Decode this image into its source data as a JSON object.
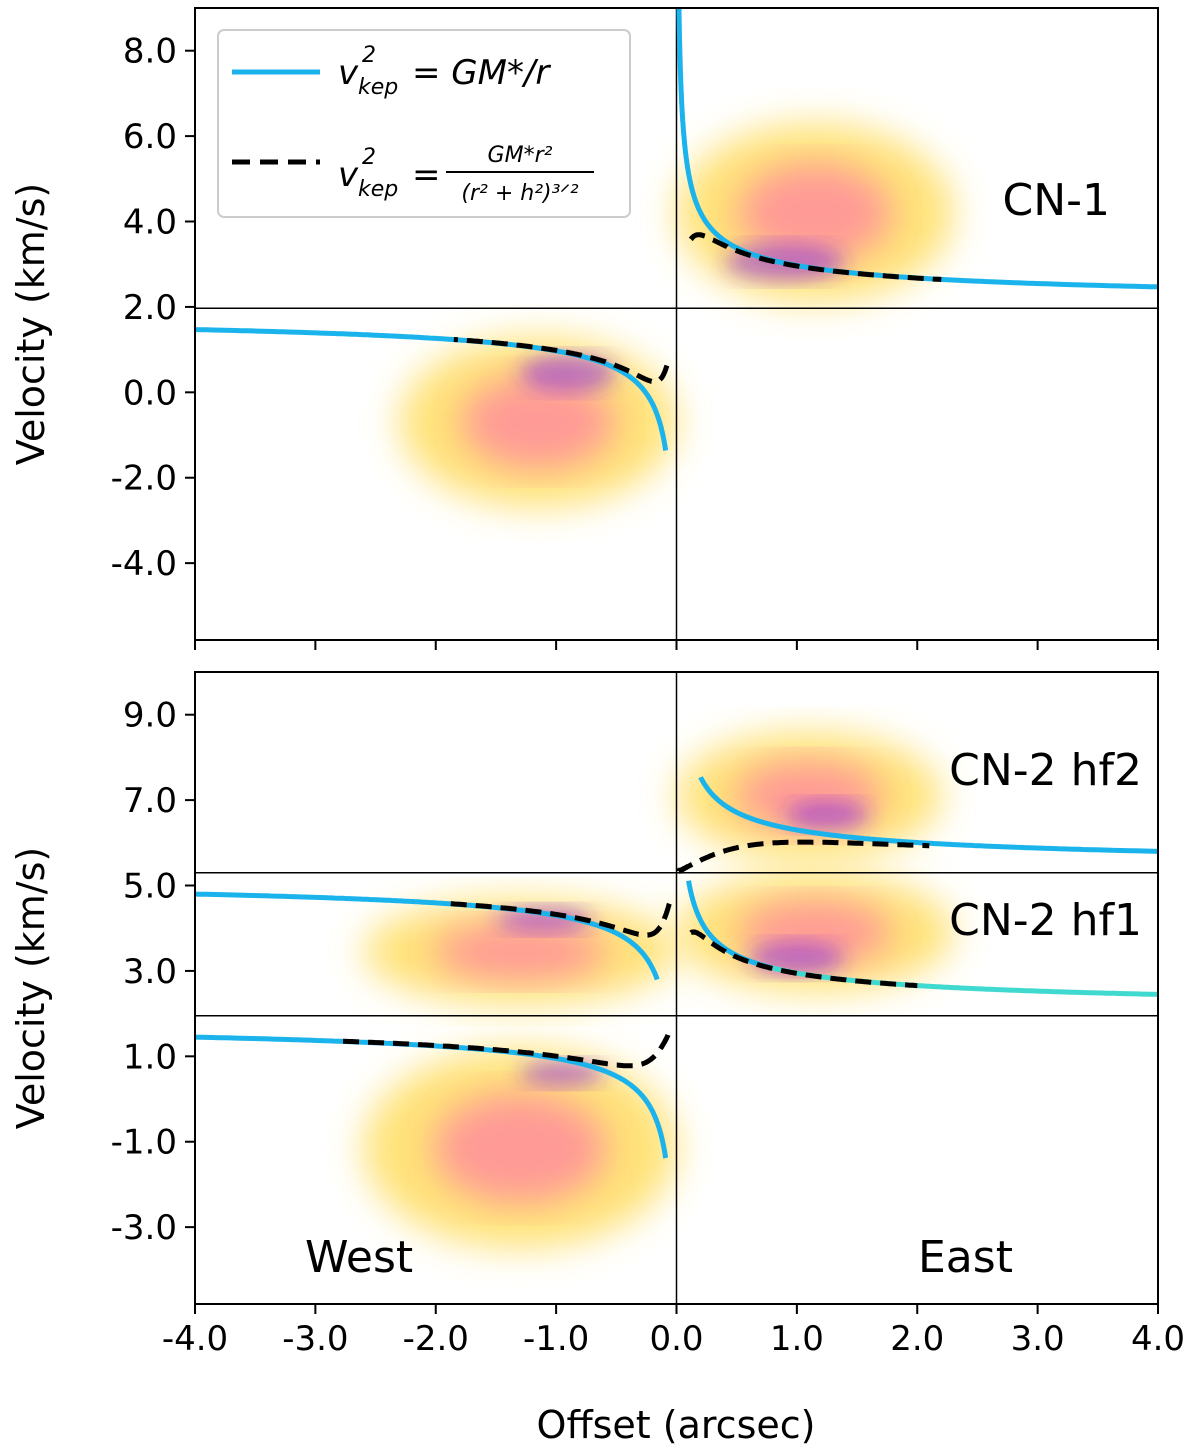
{
  "figure": {
    "xlabel": "Offset (arcsec)",
    "ylabel": "Velocity (km/s)"
  },
  "legend": {
    "items": [
      {
        "name": "v_kep^2 = GM*/r",
        "color": "#1ab3ec",
        "style": "solid",
        "lhs": "v",
        "sup": "2",
        "sub": "kep",
        "rhs": "= GM*/r"
      },
      {
        "name": "v_kep^2 = GM*r^2/(r^2+h^2)^(3/2)",
        "color": "#000000",
        "style": "dashed",
        "lhs": "v",
        "sup": "2",
        "sub": "kep",
        "eq": "=",
        "num": "GM*r²",
        "den": "(r² + h²)³ᐟ²"
      }
    ]
  },
  "chart_data": [
    {
      "type": "line",
      "panel_label": "CN-1",
      "xlabel": "",
      "ylabel": "Velocity (km/s)",
      "xlim": [
        -4.0,
        4.0
      ],
      "ylim": [
        -5.8,
        9.0
      ],
      "xticks": [
        "-4.0",
        "-3.0",
        "-2.0",
        "-1.0",
        "0.0",
        "1.0",
        "2.0",
        "3.0",
        "4.0"
      ],
      "yticks": [
        -4.0,
        -2.0,
        0.0,
        2.0,
        4.0,
        6.0,
        8.0
      ],
      "ytick_labels": [
        "-4.0",
        "-2.0",
        "0.0",
        "2.0",
        "4.0",
        "6.0",
        "8.0"
      ],
      "hlines": [
        1.97
      ],
      "vline": 0.0,
      "series": [
        {
          "color": "#1ab3ec",
          "style": "solid",
          "side": "east",
          "v0": 1.97,
          "K": 1.0,
          "r_min": 0.02,
          "r_max": 4.0
        },
        {
          "color": "#1ab3ec",
          "style": "solid",
          "side": "west",
          "v0": 1.97,
          "K": 1.0,
          "r_min": 0.09,
          "r_max": 4.0
        },
        {
          "color": "#000000",
          "style": "dashed",
          "side": "east",
          "v0": 1.97,
          "K": 1.0,
          "h": 0.13,
          "r_min": 0.12,
          "r_max": 2.2
        },
        {
          "color": "#000000",
          "style": "dashed",
          "side": "west",
          "v0": 1.97,
          "K": 1.0,
          "h": 0.13,
          "r_min": 0.08,
          "r_max": 1.85
        }
      ],
      "intensity": [
        {
          "x": [
            0.0,
            2.3
          ],
          "y": [
            2.1,
            6.3
          ],
          "level": 0.55,
          "shape": "east"
        },
        {
          "x": [
            -2.3,
            0.0
          ],
          "y": [
            -2.7,
            1.3
          ],
          "level": 0.55,
          "shape": "west"
        },
        {
          "x": [
            0.4,
            1.4
          ],
          "y": [
            2.6,
            3.5
          ],
          "level": 0.9
        },
        {
          "x": [
            -1.3,
            -0.5
          ],
          "y": [
            0.0,
            0.9
          ],
          "level": 0.9
        }
      ]
    },
    {
      "type": "line",
      "panel_label_top": "CN-2 hf2",
      "panel_label_mid": "CN-2 hf1",
      "label_west": "West",
      "label_east": "East",
      "xlabel": "Offset (arcsec)",
      "ylabel": "Velocity (km/s)",
      "xlim": [
        -4.0,
        4.0
      ],
      "ylim": [
        -4.8,
        10.0
      ],
      "xticks": [
        "-4.0",
        "-3.0",
        "-2.0",
        "-1.0",
        "0.0",
        "1.0",
        "2.0",
        "3.0",
        "4.0"
      ],
      "yticks": [
        -3.0,
        -1.0,
        1.0,
        3.0,
        5.0,
        7.0,
        9.0
      ],
      "ytick_labels": [
        "-3.0",
        "-1.0",
        "1.0",
        "3.0",
        "5.0",
        "7.0",
        "9.0"
      ],
      "hlines": [
        5.3,
        1.95
      ],
      "vline": 0.0,
      "series": [
        {
          "color": "#1ab3ec",
          "style": "solid",
          "side": "east",
          "v0": 5.3,
          "K": 1.0,
          "r_min": 0.2,
          "r_max": 4.0
        },
        {
          "color": "#40d9cf",
          "style": "solid",
          "side": "east",
          "v0": 1.95,
          "K": 1.0,
          "r_min": 0.8,
          "r_max": 4.0
        },
        {
          "color": "#1ab3ec",
          "style": "solid",
          "side": "east",
          "v0": 1.95,
          "K": 1.0,
          "r_min": 0.1,
          "r_max": 0.8
        },
        {
          "color": "#1ab3ec",
          "style": "solid",
          "side": "west",
          "v0": 5.3,
          "K": 1.0,
          "r_min": 0.16,
          "r_max": 4.0
        },
        {
          "color": "#1ab3ec",
          "style": "solid",
          "side": "west",
          "v0": 1.95,
          "K": 1.0,
          "r_min": 0.09,
          "r_max": 4.0
        },
        {
          "color": "#000000",
          "style": "dashed",
          "side": "east",
          "v0": 5.3,
          "K": 1.0,
          "h": 0.75,
          "r_min": 0.02,
          "r_max": 2.1
        },
        {
          "color": "#000000",
          "style": "dashed",
          "side": "east",
          "v0": 1.95,
          "K": 1.0,
          "h": 0.1,
          "r_min": 0.12,
          "r_max": 2.0
        },
        {
          "color": "#000000",
          "style": "dashed",
          "side": "west",
          "v0": 5.3,
          "K": 1.0,
          "h": 0.18,
          "r_min": 0.06,
          "r_max": 1.95
        },
        {
          "color": "#000000",
          "style": "dashed",
          "side": "west",
          "v0": 1.95,
          "K": 1.0,
          "h": 0.28,
          "r_min": 0.07,
          "r_max": 2.8
        }
      ],
      "intensity": [
        {
          "x": [
            0.0,
            2.2
          ],
          "y": [
            5.6,
            8.6
          ],
          "level": 0.5,
          "shape": "east"
        },
        {
          "x": [
            0.0,
            2.3
          ],
          "y": [
            2.5,
            5.3
          ],
          "level": 0.5,
          "shape": "east"
        },
        {
          "x": [
            -2.6,
            0.0
          ],
          "y": [
            2.2,
            4.7
          ],
          "level": 0.5,
          "shape": "west"
        },
        {
          "x": [
            -2.6,
            0.0
          ],
          "y": [
            -3.5,
            1.2
          ],
          "level": 0.5,
          "shape": "west"
        },
        {
          "x": [
            0.9,
            1.6
          ],
          "y": [
            6.3,
            7.0
          ],
          "level": 0.9
        },
        {
          "x": [
            0.6,
            1.4
          ],
          "y": [
            2.9,
            3.7
          ],
          "level": 0.9
        },
        {
          "x": [
            -1.5,
            -0.7
          ],
          "y": [
            3.9,
            4.5
          ],
          "level": 0.9
        },
        {
          "x": [
            -1.3,
            -0.6
          ],
          "y": [
            0.3,
            0.9
          ],
          "level": 0.9
        }
      ]
    }
  ]
}
